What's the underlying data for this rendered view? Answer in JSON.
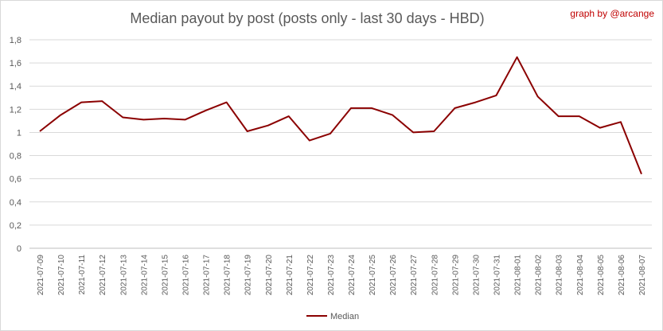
{
  "chart_title": "Median payout by post (posts only - last 30 days - HBD)",
  "credit": "graph by @arcange",
  "chart_data": {
    "type": "line",
    "title": "Median payout by post (posts only - last 30 days - HBD)",
    "xlabel": "",
    "ylabel": "",
    "ylim": [
      0,
      1.8
    ],
    "y_ticks": [
      "0",
      "0,2",
      "0,4",
      "0,6",
      "0,8",
      "1",
      "1,2",
      "1,4",
      "1,6",
      "1,8"
    ],
    "y_tick_values": [
      0,
      0.2,
      0.4,
      0.6,
      0.8,
      1.0,
      1.2,
      1.4,
      1.6,
      1.8
    ],
    "grid": true,
    "legend_position": "bottom",
    "categories": [
      "2021-07-09",
      "2021-07-10",
      "2021-07-11",
      "2021-07-12",
      "2021-07-13",
      "2021-07-14",
      "2021-07-15",
      "2021-07-16",
      "2021-07-17",
      "2021-07-18",
      "2021-07-19",
      "2021-07-20",
      "2021-07-21",
      "2021-07-22",
      "2021-07-23",
      "2021-07-24",
      "2021-07-25",
      "2021-07-26",
      "2021-07-27",
      "2021-07-28",
      "2021-07-29",
      "2021-07-30",
      "2021-07-31",
      "2021-08-01",
      "2021-08-02",
      "2021-08-03",
      "2021-08-04",
      "2021-08-05",
      "2021-08-06",
      "2021-08-07"
    ],
    "series": [
      {
        "name": "Median",
        "color": "#8b0000",
        "values": [
          1.01,
          1.15,
          1.26,
          1.27,
          1.13,
          1.11,
          1.12,
          1.11,
          1.19,
          1.26,
          1.01,
          1.06,
          1.14,
          0.93,
          0.99,
          1.21,
          1.21,
          1.15,
          1.0,
          1.01,
          1.21,
          1.26,
          1.32,
          1.65,
          1.31,
          1.14,
          1.14,
          1.04,
          1.09,
          0.64
        ]
      }
    ]
  }
}
